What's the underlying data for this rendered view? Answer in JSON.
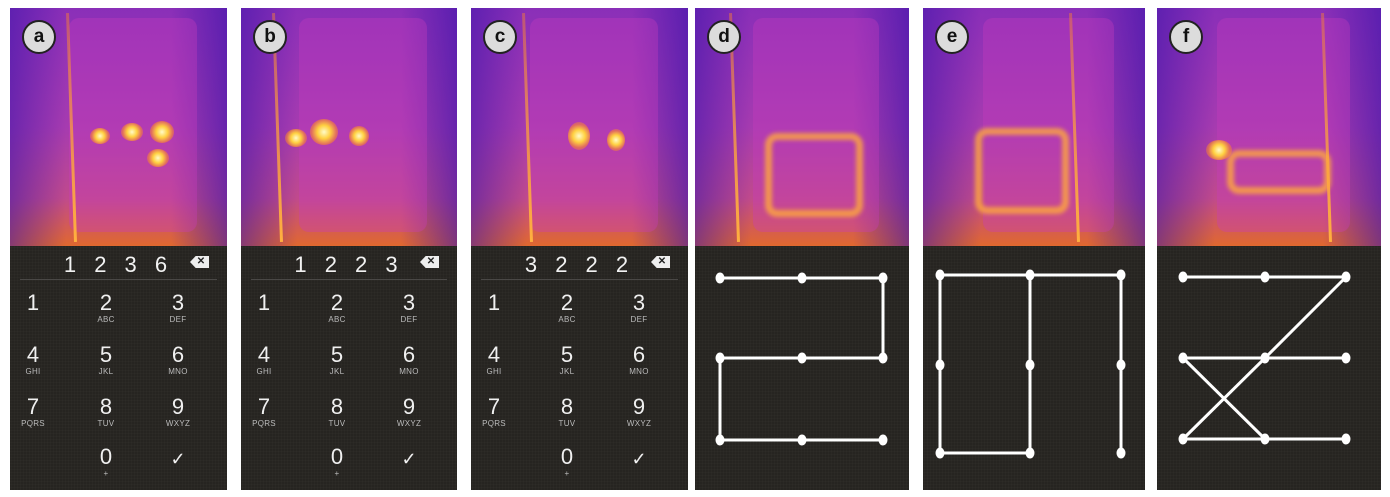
{
  "panels": [
    {
      "label": "a",
      "type": "pin",
      "entry": "1 2 3 6"
    },
    {
      "label": "b",
      "type": "pin",
      "entry": "1 2 2 3"
    },
    {
      "label": "c",
      "type": "pin",
      "entry": "3 2 2 2"
    },
    {
      "label": "d",
      "type": "pattern",
      "segments": [
        [
          1,
          2
        ],
        [
          2,
          3
        ],
        [
          3,
          6
        ],
        [
          6,
          5
        ],
        [
          5,
          4
        ],
        [
          4,
          7
        ],
        [
          7,
          8
        ],
        [
          8,
          9
        ]
      ]
    },
    {
      "label": "e",
      "type": "pattern",
      "segments": [
        [
          1,
          2
        ],
        [
          2,
          3
        ],
        [
          1,
          4
        ],
        [
          4,
          7
        ],
        [
          7,
          8
        ],
        [
          2,
          5
        ],
        [
          5,
          8
        ],
        [
          3,
          6
        ],
        [
          6,
          9
        ]
      ]
    },
    {
      "label": "f",
      "type": "pattern",
      "segments": [
        [
          1,
          2
        ],
        [
          2,
          3
        ],
        [
          3,
          5
        ],
        [
          5,
          7
        ],
        [
          4,
          5
        ],
        [
          5,
          6
        ],
        [
          4,
          8
        ],
        [
          7,
          8
        ],
        [
          8,
          9
        ]
      ]
    }
  ],
  "keypad": {
    "keys": [
      {
        "digit": "1",
        "letters": ""
      },
      {
        "digit": "2",
        "letters": "ABC"
      },
      {
        "digit": "3",
        "letters": "DEF"
      },
      {
        "digit": "4",
        "letters": "GHI"
      },
      {
        "digit": "5",
        "letters": "JKL"
      },
      {
        "digit": "6",
        "letters": "MNO"
      },
      {
        "digit": "7",
        "letters": "PQRS"
      },
      {
        "digit": "8",
        "letters": "TUV"
      },
      {
        "digit": "9",
        "letters": "WXYZ"
      },
      {
        "digit": "0",
        "letters": "+"
      }
    ],
    "confirm_icon": "check-icon",
    "backspace_icon": "backspace-icon",
    "backspace_glyph": "✕",
    "confirm_glyph": "✓"
  },
  "colors": {
    "pad_bg": "#262421",
    "pattern_line": "#ffffff",
    "thermal_hot": "#ffd040",
    "thermal_cool": "#8a2fb8"
  }
}
